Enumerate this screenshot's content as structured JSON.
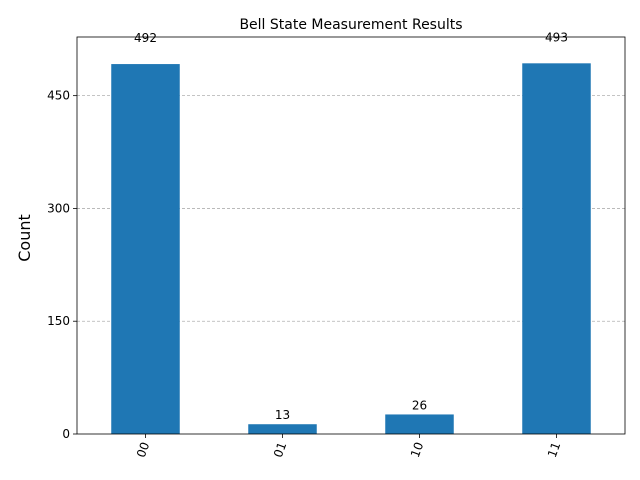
{
  "chart_data": {
    "type": "bar",
    "title": "Bell State Measurement Results",
    "ylabel": "Count",
    "xlabel": "",
    "categories": [
      "00",
      "01",
      "10",
      "11"
    ],
    "values": [
      492,
      13,
      26,
      493
    ],
    "ylim": [
      0,
      528
    ],
    "yticks": [
      0,
      150,
      300,
      450
    ],
    "grid": "y-dashed",
    "bar_color": "#1f77b4",
    "grid_color": "#b0b0b0",
    "x_tick_rotation": 70
  }
}
